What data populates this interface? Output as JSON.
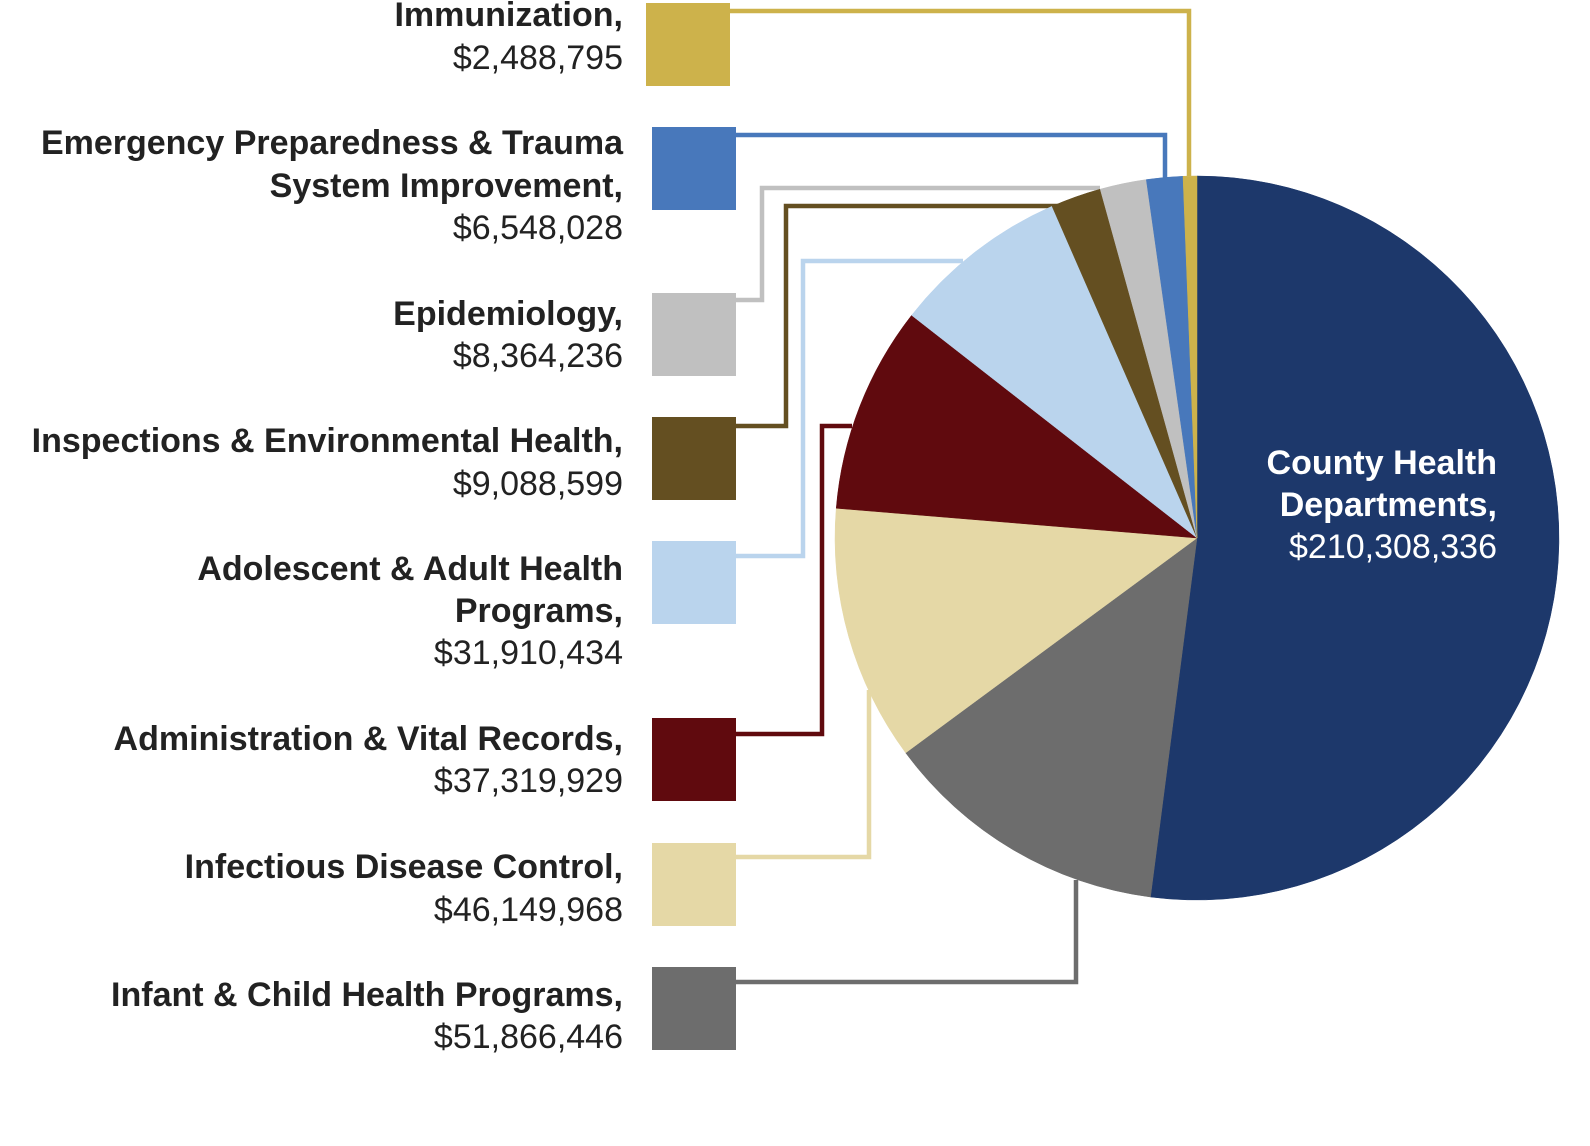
{
  "chart_data": {
    "type": "pie",
    "start_angle_deg": 0,
    "direction": "clockwise",
    "slices": [
      {
        "label": "County Health Departments,",
        "value_label": "$210,308,336",
        "value": 210308336,
        "color": "#1d386b"
      },
      {
        "label": "Infant & Child Health Programs,",
        "value_label": "$51,866,446",
        "value": 51866446,
        "color": "#6d6d6d"
      },
      {
        "label": "Infectious Disease Control,",
        "value_label": "$46,149,968",
        "value": 46149968,
        "color": "#e5d8a6"
      },
      {
        "label": "Administration & Vital Records,",
        "value_label": "$37,319,929",
        "value": 37319929,
        "color": "#600a0e"
      },
      {
        "label": "Adolescent & Adult Health Programs,",
        "value_label": "$31,910,434",
        "value": 31910434,
        "color": "#bad4ed"
      },
      {
        "label": "Inspections & Environmental Health,",
        "value_label": "$9,088,599",
        "value": 9088599,
        "color": "#644f21"
      },
      {
        "label": "Epidemiology,",
        "value_label": "$8,364,236",
        "value": 8364236,
        "color": "#c0c0c0"
      },
      {
        "label": "Emergency Preparedness & Trauma System Improvement,",
        "value_label": "$6,548,028",
        "value": 6548028,
        "color": "#4878bb"
      },
      {
        "label": "Immunization,",
        "value_label": "$2,488,795",
        "value": 2488795,
        "color": "#cdb24b"
      }
    ]
  }
}
